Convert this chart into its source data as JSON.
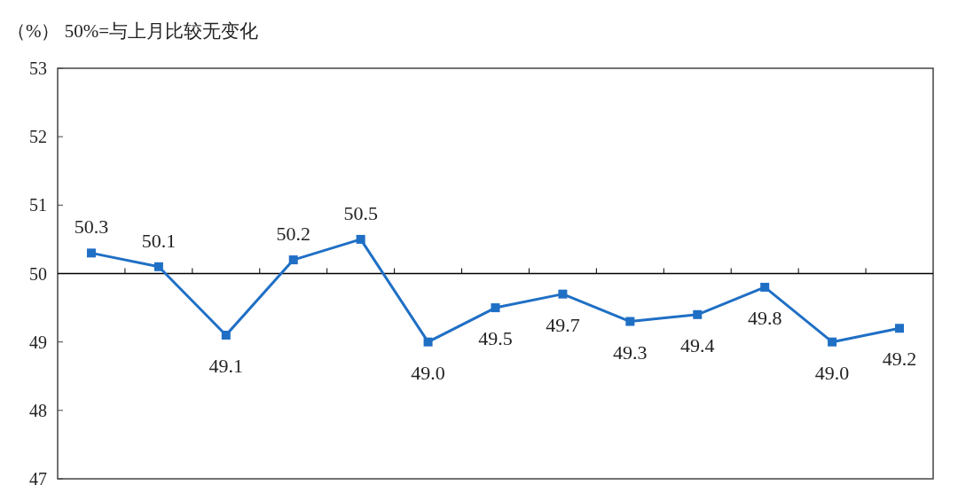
{
  "chart_data": {
    "type": "line",
    "title": "（%） 50%=与上月比较无变化",
    "categories": [
      null,
      null,
      null,
      null,
      null,
      null,
      null,
      null,
      null,
      null,
      null,
      null,
      null
    ],
    "series": [
      {
        "color": "#1f6fc5",
        "values": [
          50.3,
          50.1,
          49.1,
          50.2,
          50.5,
          49.0,
          49.5,
          49.7,
          49.3,
          49.4,
          49.8,
          49.0,
          49.2
        ],
        "value_labels": [
          "50.3",
          "50.1",
          "49.1",
          "50.2",
          "50.5",
          "49.0",
          "49.5",
          "49.7",
          "49.3",
          "49.4",
          "49.8",
          "49.0",
          "49.2"
        ]
      }
    ],
    "ylim": [
      47,
      53
    ],
    "yticks": [
      47,
      48,
      49,
      50,
      51,
      52,
      53
    ],
    "marker": "square",
    "line_style": "solid",
    "grid": false,
    "ref_lines": [
      {
        "axis": "y",
        "value": 50,
        "color": "#000000"
      }
    ]
  }
}
